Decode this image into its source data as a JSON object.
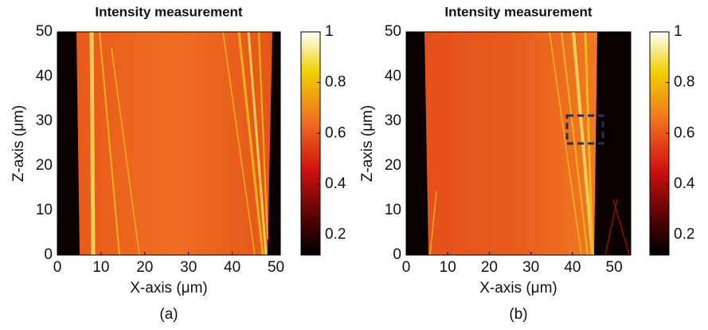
{
  "chart_data": [
    {
      "type": "heatmap",
      "title": "Intensity measurement",
      "xlabel": "X-axis (μm)",
      "ylabel": "Z-axis (μm)",
      "panel_label": "(a)",
      "xlim": [
        0,
        51
      ],
      "ylim": [
        0,
        50
      ],
      "xticks": [
        0,
        10,
        20,
        30,
        40,
        50
      ],
      "yticks": [
        0,
        10,
        20,
        30,
        40,
        50
      ],
      "colormap": "hot",
      "colorbar": {
        "lim": [
          0.12,
          1
        ],
        "ticks": [
          0.2,
          0.4,
          0.6,
          0.8,
          1
        ]
      }
    },
    {
      "type": "heatmap",
      "title": "Intensity measurement",
      "xlabel": "X-axis (μm)",
      "ylabel": "Z-axis (μm)",
      "panel_label": "(b)",
      "xlim": [
        0,
        54
      ],
      "ylim": [
        0,
        50
      ],
      "xticks": [
        0,
        10,
        20,
        30,
        40,
        50
      ],
      "yticks": [
        0,
        10,
        20,
        30,
        40,
        50
      ],
      "colormap": "hot",
      "colorbar": {
        "lim": [
          0.12,
          1
        ],
        "ticks": [
          0.2,
          0.4,
          0.6,
          0.8,
          1
        ]
      }
    }
  ]
}
